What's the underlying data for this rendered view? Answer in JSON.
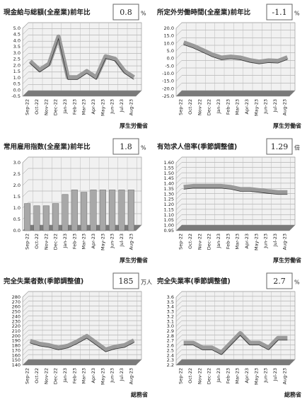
{
  "chart_data": [
    {
      "type": "line",
      "title": "現金給与総額(全産業)前年比",
      "headline_value": 0.8,
      "unit": "%",
      "source": "厚生労働省",
      "categories": [
        "Sep-22",
        "Oct-22",
        "Nov-22",
        "Dec-22",
        "Jan-23",
        "Feb-23",
        "Mar-23",
        "Apr-23",
        "May-23",
        "Jun-23",
        "Jul-23",
        "Aug-23"
      ],
      "values": [
        2.1,
        1.4,
        1.9,
        4.1,
        0.8,
        0.8,
        1.3,
        0.8,
        2.5,
        2.3,
        1.3,
        0.8
      ],
      "color": "#9a9a9a",
      "ylim": [
        -0.5,
        5.0
      ],
      "yticks": [
        -0.5,
        {
          "value": 0,
          "label": "0.0"
        },
        0.5,
        {
          "value": 1,
          "label": "1.0"
        },
        1.5,
        {
          "value": 2,
          "label": "2.0"
        },
        2.5,
        {
          "value": 3,
          "label": "3.0"
        },
        3.5,
        {
          "value": 4,
          "label": "4.0"
        },
        4.5,
        {
          "value": 5,
          "label": "5.0"
        }
      ],
      "grid": true
    },
    {
      "type": "line",
      "title": "所定外労働時間(全産業)前年比",
      "headline_value": -1.1,
      "unit": "%",
      "source": "厚生労働省",
      "categories": [
        "Sep-22",
        "Oct-22",
        "Nov-22",
        "Dec-22",
        "Jan-23",
        "Feb-23",
        "Mar-23",
        "Apr-23",
        "May-23",
        "Jun-23",
        "Jul-23",
        "Aug-23"
      ],
      "values": [
        8.7,
        6.5,
        3.7,
        0.8,
        -1.3,
        -0.7,
        -1.3,
        -3.0,
        -4.0,
        -3.2,
        -3.5,
        -1.1
      ],
      "color": "#9a9a9a",
      "ylim": [
        -25,
        20
      ],
      "yticks": [
        {
          "value": -25,
          "label": "-25.0"
        },
        {
          "value": -20,
          "label": "-20.0"
        },
        {
          "value": -15,
          "label": "-15.0"
        },
        {
          "value": -10,
          "label": "-10.0"
        },
        {
          "value": -5,
          "label": "-5.0"
        },
        {
          "value": 0,
          "label": "0.0"
        },
        {
          "value": 5,
          "label": "5.0"
        },
        {
          "value": 10,
          "label": "10.0"
        },
        {
          "value": 15,
          "label": "15.0"
        },
        {
          "value": 20,
          "label": "20.0"
        }
      ],
      "grid": true
    },
    {
      "type": "bar",
      "title": "常用雇用指数(全産業)前年比",
      "headline_value": 1.8,
      "unit": "%",
      "source": "厚生労働省",
      "categories": [
        "Sep-22",
        "Oct-22",
        "Nov-22",
        "Dec-22",
        "Jan-23",
        "Feb-23",
        "Mar-23",
        "Apr-23",
        "May-23",
        "Jun-23",
        "Jul-23",
        "Aug-23"
      ],
      "values": [
        1.2,
        1.1,
        1.1,
        1.2,
        1.6,
        1.8,
        1.7,
        1.8,
        1.8,
        1.8,
        1.8,
        1.8
      ],
      "color": "#a8a8a8",
      "ylim": [
        0,
        3.0
      ],
      "yticks": [
        {
          "value": 0,
          "label": "0.0"
        },
        0.5,
        {
          "value": 1,
          "label": "1.0"
        },
        1.5,
        {
          "value": 2,
          "label": "2.0"
        },
        2.5,
        {
          "value": 3,
          "label": "3.0"
        }
      ],
      "grid": true
    },
    {
      "type": "line",
      "title": "有効求人倍率(季節調整値)",
      "headline_value": 1.29,
      "unit": "倍",
      "source": "厚生労働省",
      "categories": [
        "Sep-22",
        "Oct-22",
        "Nov-22",
        "Dec-22",
        "Jan-23",
        "Feb-23",
        "Mar-23",
        "Apr-23",
        "May-23",
        "Jun-23",
        "Jul-23",
        "Aug-23"
      ],
      "values": [
        1.34,
        1.35,
        1.35,
        1.35,
        1.35,
        1.34,
        1.32,
        1.32,
        1.31,
        1.3,
        1.29,
        1.29
      ],
      "color": "#9a9a9a",
      "ylim": [
        0.95,
        1.6
      ],
      "yticks": [
        0.95,
        {
          "value": 1,
          "label": "1.00"
        },
        1.05,
        {
          "value": 1.1,
          "label": "1.10"
        },
        1.15,
        {
          "value": 1.2,
          "label": "1.20"
        },
        1.25,
        {
          "value": 1.3,
          "label": "1.30"
        },
        1.35,
        {
          "value": 1.4,
          "label": "1.40"
        },
        1.45,
        {
          "value": 1.5,
          "label": "1.50"
        },
        1.55,
        {
          "value": 1.6,
          "label": "1.60"
        }
      ],
      "grid": true
    },
    {
      "type": "line",
      "title": "完全失業者数(季節調整値)",
      "headline_value": 185,
      "unit": "万人",
      "source": "総務省",
      "categories": [
        "Sep-22",
        "Oct-22",
        "Nov-22",
        "Dec-22",
        "Jan-23",
        "Feb-23",
        "Mar-23",
        "Apr-23",
        "May-23",
        "Jun-23",
        "Jul-23",
        "Aug-23"
      ],
      "values": [
        184,
        178,
        175,
        170,
        174,
        183,
        194,
        180,
        166,
        172,
        175,
        185
      ],
      "color": "#9a9a9a",
      "ylim": [
        140,
        280
      ],
      "yticks": [
        140,
        150,
        160,
        170,
        180,
        190,
        200,
        210,
        220,
        230,
        240,
        250,
        260,
        270,
        280
      ],
      "grid": true
    },
    {
      "type": "line",
      "title": "完全失業率(季節調整値)",
      "headline_value": 2.7,
      "unit": "%",
      "source": "総務省",
      "categories": [
        "Sep-22",
        "Oct-22",
        "Nov-22",
        "Dec-22",
        "Jan-23",
        "Feb-23",
        "Mar-23",
        "Apr-23",
        "May-23",
        "Jun-23",
        "Jul-23",
        "Aug-23"
      ],
      "values": [
        2.6,
        2.6,
        2.5,
        2.5,
        2.4,
        2.6,
        2.8,
        2.6,
        2.6,
        2.5,
        2.7,
        2.7
      ],
      "color": "#9a9a9a",
      "ylim": [
        2.2,
        3.6
      ],
      "yticks": [
        2.2,
        2.3,
        2.4,
        2.5,
        2.6,
        2.7,
        2.8,
        2.9,
        {
          "value": 3,
          "label": "3.0"
        },
        3.1,
        3.2,
        3.3,
        3.4,
        3.5,
        3.6
      ],
      "grid": true
    }
  ]
}
